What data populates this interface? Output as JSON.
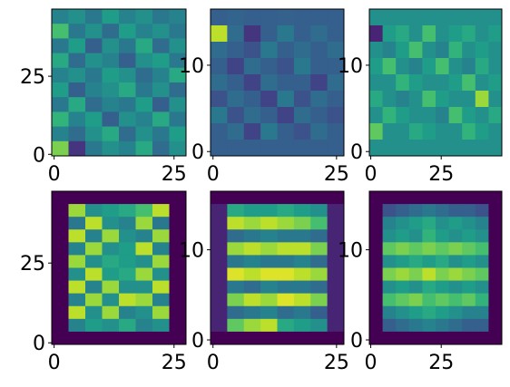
{
  "chart_data": [
    {
      "type": "heatmap",
      "colormap": "viridis",
      "xlim": [
        -0.5,
        27.5
      ],
      "ylim": [
        -0.5,
        46.5
      ],
      "xticks": [
        0,
        25
      ],
      "yticks": [
        0,
        25
      ],
      "z": [
        [
          0.45,
          0.5,
          0.4,
          0.55,
          0.45,
          0.5,
          0.4,
          0.45
        ],
        [
          0.7,
          0.4,
          0.5,
          0.35,
          0.55,
          0.45,
          0.5,
          0.4
        ],
        [
          0.4,
          0.55,
          0.3,
          0.5,
          0.4,
          0.6,
          0.35,
          0.5
        ],
        [
          0.6,
          0.35,
          0.5,
          0.45,
          0.3,
          0.5,
          0.55,
          0.4
        ],
        [
          0.45,
          0.5,
          0.4,
          0.55,
          0.5,
          0.35,
          0.45,
          0.6
        ],
        [
          0.55,
          0.3,
          0.45,
          0.5,
          0.6,
          0.4,
          0.5,
          0.35
        ],
        [
          0.4,
          0.6,
          0.35,
          0.45,
          0.4,
          0.55,
          0.3,
          0.5
        ],
        [
          0.65,
          0.45,
          0.55,
          0.3,
          0.5,
          0.45,
          0.6,
          0.4
        ],
        [
          0.45,
          0.35,
          0.5,
          0.6,
          0.35,
          0.5,
          0.4,
          0.55
        ],
        [
          0.8,
          0.15,
          0.4,
          0.5,
          0.45,
          0.6,
          0.35,
          0.5
        ]
      ]
    },
    {
      "type": "heatmap",
      "colormap": "viridis",
      "xlim": [
        -0.5,
        26.5
      ],
      "ylim": [
        -0.5,
        16.5
      ],
      "xticks": [
        0,
        25
      ],
      "yticks": [
        0,
        10
      ],
      "z": [
        [
          0.3,
          0.32,
          0.3,
          0.3,
          0.31,
          0.3,
          0.3,
          0.3
        ],
        [
          0.9,
          0.35,
          0.15,
          0.3,
          0.4,
          0.3,
          0.35,
          0.3
        ],
        [
          0.35,
          0.3,
          0.25,
          0.4,
          0.3,
          0.35,
          0.3,
          0.35
        ],
        [
          0.3,
          0.2,
          0.35,
          0.3,
          0.25,
          0.4,
          0.3,
          0.3
        ],
        [
          0.35,
          0.3,
          0.2,
          0.35,
          0.3,
          0.3,
          0.2,
          0.35
        ],
        [
          0.25,
          0.35,
          0.3,
          0.2,
          0.4,
          0.25,
          0.35,
          0.3
        ],
        [
          0.4,
          0.25,
          0.35,
          0.3,
          0.2,
          0.35,
          0.3,
          0.25
        ],
        [
          0.3,
          0.35,
          0.2,
          0.4,
          0.3,
          0.25,
          0.35,
          0.3
        ],
        [
          0.3,
          0.3,
          0.3,
          0.3,
          0.3,
          0.3,
          0.3,
          0.3
        ]
      ]
    },
    {
      "type": "heatmap",
      "colormap": "viridis",
      "xlim": [
        -0.5,
        46.5
      ],
      "ylim": [
        -0.5,
        16.5
      ],
      "xticks": [
        0,
        25
      ],
      "yticks": [
        0,
        10
      ],
      "z": [
        [
          0.5,
          0.5,
          0.5,
          0.5,
          0.5,
          0.5,
          0.5,
          0.5,
          0.5,
          0.5
        ],
        [
          0.1,
          0.55,
          0.6,
          0.5,
          0.7,
          0.5,
          0.55,
          0.6,
          0.5,
          0.55
        ],
        [
          0.5,
          0.45,
          0.55,
          0.7,
          0.5,
          0.45,
          0.65,
          0.5,
          0.55,
          0.5
        ],
        [
          0.55,
          0.7,
          0.5,
          0.45,
          0.55,
          0.7,
          0.5,
          0.45,
          0.6,
          0.5
        ],
        [
          0.5,
          0.5,
          0.65,
          0.55,
          0.5,
          0.5,
          0.55,
          0.7,
          0.5,
          0.55
        ],
        [
          0.6,
          0.5,
          0.45,
          0.5,
          0.7,
          0.55,
          0.5,
          0.5,
          0.85,
          0.5
        ],
        [
          0.5,
          0.65,
          0.55,
          0.5,
          0.5,
          0.45,
          0.7,
          0.55,
          0.5,
          0.6
        ],
        [
          0.75,
          0.5,
          0.5,
          0.6,
          0.55,
          0.5,
          0.5,
          0.65,
          0.55,
          0.5
        ],
        [
          0.5,
          0.5,
          0.5,
          0.5,
          0.5,
          0.5,
          0.5,
          0.5,
          0.5,
          0.5
        ]
      ]
    },
    {
      "type": "heatmap",
      "colormap": "viridis",
      "xlim": [
        -0.5,
        27.5
      ],
      "ylim": [
        -0.5,
        47.5
      ],
      "xticks": [
        0,
        25
      ],
      "yticks": [
        0,
        25
      ],
      "z": [
        [
          0,
          0,
          0,
          0,
          0,
          0,
          0,
          0
        ],
        [
          0,
          0.85,
          0.5,
          0.55,
          0.6,
          0.7,
          0.9,
          0
        ],
        [
          0,
          0.4,
          0.9,
          0.5,
          0.45,
          0.85,
          0.4,
          0
        ],
        [
          0,
          0.9,
          0.45,
          0.85,
          0.5,
          0.45,
          0.85,
          0
        ],
        [
          0,
          0.45,
          0.85,
          0.5,
          0.55,
          0.9,
          0.45,
          0
        ],
        [
          0,
          0.85,
          0.5,
          0.6,
          0.55,
          0.5,
          0.85,
          0
        ],
        [
          0,
          0.5,
          0.9,
          0.55,
          0.6,
          0.85,
          0.5,
          0
        ],
        [
          0,
          0.9,
          0.45,
          0.85,
          0.5,
          0.5,
          0.9,
          0
        ],
        [
          0,
          0.45,
          0.85,
          0.5,
          0.9,
          0.85,
          0.45,
          0
        ],
        [
          0,
          0.9,
          0.5,
          0.85,
          0.45,
          0.5,
          0.85,
          0
        ],
        [
          0,
          0.45,
          0.55,
          0.5,
          0.6,
          0.45,
          0.5,
          0
        ],
        [
          0,
          0,
          0,
          0,
          0,
          0,
          0,
          0
        ]
      ]
    },
    {
      "type": "heatmap",
      "colormap": "viridis",
      "xlim": [
        -0.5,
        26.5
      ],
      "ylim": [
        -0.5,
        16.5
      ],
      "xticks": [
        0,
        25
      ],
      "yticks": [
        0,
        10
      ],
      "z": [
        [
          0,
          0,
          0,
          0,
          0,
          0,
          0,
          0
        ],
        [
          0.1,
          0.6,
          0.55,
          0.55,
          0.6,
          0.55,
          0.5,
          0.1
        ],
        [
          0.1,
          0.9,
          0.85,
          0.9,
          0.85,
          0.8,
          0.7,
          0.1
        ],
        [
          0.1,
          0.35,
          0.4,
          0.45,
          0.4,
          0.4,
          0.35,
          0.1
        ],
        [
          0.1,
          0.85,
          0.9,
          0.85,
          0.9,
          0.9,
          0.8,
          0.1
        ],
        [
          0.1,
          0.4,
          0.45,
          0.4,
          0.4,
          0.45,
          0.35,
          0.1
        ],
        [
          0.1,
          0.95,
          0.9,
          0.95,
          0.95,
          0.9,
          0.85,
          0.1
        ],
        [
          0.1,
          0.4,
          0.35,
          0.45,
          0.4,
          0.4,
          0.35,
          0.1
        ],
        [
          0.1,
          0.8,
          0.9,
          0.85,
          0.95,
          0.9,
          0.8,
          0.1
        ],
        [
          0.1,
          0.35,
          0.4,
          0.45,
          0.35,
          0.4,
          0.3,
          0.1
        ],
        [
          0.1,
          0.75,
          0.85,
          0.9,
          0.6,
          0.55,
          0.5,
          0.1
        ],
        [
          0,
          0,
          0,
          0,
          0,
          0,
          0,
          0
        ]
      ]
    },
    {
      "type": "heatmap",
      "colormap": "viridis",
      "xlim": [
        -0.5,
        46.5
      ],
      "ylim": [
        -0.5,
        16.5
      ],
      "xticks": [
        0,
        25
      ],
      "yticks": [
        0,
        10
      ],
      "z": [
        [
          0,
          0,
          0,
          0,
          0,
          0,
          0,
          0,
          0,
          0
        ],
        [
          0,
          0.25,
          0.3,
          0.35,
          0.4,
          0.35,
          0.3,
          0.3,
          0.25,
          0
        ],
        [
          0,
          0.45,
          0.5,
          0.55,
          0.6,
          0.5,
          0.55,
          0.5,
          0.45,
          0
        ],
        [
          0,
          0.5,
          0.55,
          0.5,
          0.65,
          0.55,
          0.5,
          0.55,
          0.5,
          0
        ],
        [
          0,
          0.75,
          0.8,
          0.75,
          0.8,
          0.75,
          0.8,
          0.75,
          0.7,
          0
        ],
        [
          0,
          0.5,
          0.55,
          0.6,
          0.55,
          0.6,
          0.5,
          0.55,
          0.5,
          0
        ],
        [
          0,
          0.8,
          0.85,
          0.8,
          0.9,
          0.8,
          0.85,
          0.8,
          0.75,
          0
        ],
        [
          0,
          0.5,
          0.55,
          0.5,
          0.6,
          0.55,
          0.5,
          0.55,
          0.5,
          0
        ],
        [
          0,
          0.7,
          0.75,
          0.8,
          0.7,
          0.75,
          0.7,
          0.75,
          0.65,
          0
        ],
        [
          0,
          0.45,
          0.5,
          0.55,
          0.6,
          0.55,
          0.5,
          0.45,
          0.45,
          0
        ],
        [
          0,
          0.3,
          0.35,
          0.4,
          0.45,
          0.4,
          0.35,
          0.3,
          0.3,
          0
        ],
        [
          0,
          0,
          0,
          0,
          0,
          0,
          0,
          0,
          0,
          0
        ]
      ]
    }
  ]
}
